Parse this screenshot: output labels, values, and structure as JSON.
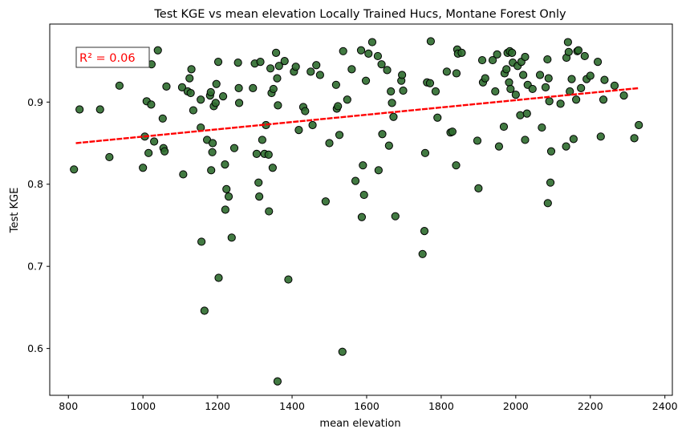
{
  "chart_data": {
    "type": "scatter",
    "title": "Test KGE vs mean elevation Locally Trained Hucs, Montane Forest Only",
    "xlabel": "mean elevation",
    "ylabel": "Test KGE",
    "xlim": [
      750,
      2420
    ],
    "ylim": [
      0.543,
      0.995
    ],
    "xticks": [
      800,
      1000,
      1200,
      1400,
      1600,
      1800,
      2000,
      2200,
      2400
    ],
    "yticks": [
      0.6,
      0.7,
      0.8,
      0.9
    ],
    "grid": false,
    "annotation": "R² = 0.06",
    "annotation_color": "#ff0000",
    "marker_color": "#2e6b2e",
    "marker_edge": "#000000",
    "trend_color": "#ff0000",
    "trend_line": {
      "x": [
        820,
        2330
      ],
      "y": [
        0.85,
        0.917
      ]
    },
    "points": [
      [
        815,
        0.818
      ],
      [
        830,
        0.891
      ],
      [
        885,
        0.891
      ],
      [
        910,
        0.833
      ],
      [
        937,
        0.92
      ],
      [
        1000,
        0.82
      ],
      [
        1005,
        0.858
      ],
      [
        1010,
        0.901
      ],
      [
        1015,
        0.838
      ],
      [
        1022,
        0.897
      ],
      [
        1023,
        0.946
      ],
      [
        1030,
        0.852
      ],
      [
        1040,
        0.963
      ],
      [
        1053,
        0.88
      ],
      [
        1055,
        0.844
      ],
      [
        1058,
        0.84
      ],
      [
        1063,
        0.919
      ],
      [
        1105,
        0.918
      ],
      [
        1108,
        0.812
      ],
      [
        1120,
        0.913
      ],
      [
        1125,
        0.929
      ],
      [
        1128,
        0.911
      ],
      [
        1130,
        0.94
      ],
      [
        1135,
        0.89
      ],
      [
        1155,
        0.903
      ],
      [
        1155,
        0.869
      ],
      [
        1157,
        0.73
      ],
      [
        1165,
        0.646
      ],
      [
        1172,
        0.854
      ],
      [
        1180,
        0.908
      ],
      [
        1182,
        0.912
      ],
      [
        1183,
        0.817
      ],
      [
        1186,
        0.839
      ],
      [
        1187,
        0.85
      ],
      [
        1190,
        0.895
      ],
      [
        1195,
        0.899
      ],
      [
        1197,
        0.922
      ],
      [
        1202,
        0.949
      ],
      [
        1203,
        0.686
      ],
      [
        1215,
        0.907
      ],
      [
        1220,
        0.824
      ],
      [
        1221,
        0.769
      ],
      [
        1224,
        0.794
      ],
      [
        1230,
        0.785
      ],
      [
        1238,
        0.735
      ],
      [
        1245,
        0.844
      ],
      [
        1255,
        0.948
      ],
      [
        1257,
        0.917
      ],
      [
        1258,
        0.899
      ],
      [
        1295,
        0.917
      ],
      [
        1300,
        0.947
      ],
      [
        1305,
        0.837
      ],
      [
        1310,
        0.802
      ],
      [
        1312,
        0.785
      ],
      [
        1315,
        0.949
      ],
      [
        1320,
        0.854
      ],
      [
        1326,
        0.837
      ],
      [
        1330,
        0.872
      ],
      [
        1337,
        0.836
      ],
      [
        1338,
        0.767
      ],
      [
        1342,
        0.941
      ],
      [
        1345,
        0.911
      ],
      [
        1348,
        0.82
      ],
      [
        1350,
        0.916
      ],
      [
        1357,
        0.96
      ],
      [
        1360,
        0.929
      ],
      [
        1361,
        0.56
      ],
      [
        1362,
        0.896
      ],
      [
        1365,
        0.944
      ],
      [
        1380,
        0.95
      ],
      [
        1390,
        0.684
      ],
      [
        1405,
        0.937
      ],
      [
        1410,
        0.943
      ],
      [
        1418,
        0.866
      ],
      [
        1430,
        0.894
      ],
      [
        1435,
        0.889
      ],
      [
        1450,
        0.937
      ],
      [
        1455,
        0.872
      ],
      [
        1465,
        0.945
      ],
      [
        1475,
        0.933
      ],
      [
        1490,
        0.779
      ],
      [
        1500,
        0.85
      ],
      [
        1518,
        0.921
      ],
      [
        1520,
        0.892
      ],
      [
        1523,
        0.895
      ],
      [
        1527,
        0.86
      ],
      [
        1535,
        0.596
      ],
      [
        1537,
        0.962
      ],
      [
        1548,
        0.903
      ],
      [
        1560,
        0.94
      ],
      [
        1570,
        0.804
      ],
      [
        1585,
        0.963
      ],
      [
        1587,
        0.76
      ],
      [
        1590,
        0.823
      ],
      [
        1593,
        0.787
      ],
      [
        1598,
        0.926
      ],
      [
        1605,
        0.959
      ],
      [
        1615,
        0.973
      ],
      [
        1630,
        0.956
      ],
      [
        1632,
        0.817
      ],
      [
        1640,
        0.946
      ],
      [
        1642,
        0.861
      ],
      [
        1655,
        0.939
      ],
      [
        1660,
        0.847
      ],
      [
        1665,
        0.913
      ],
      [
        1668,
        0.899
      ],
      [
        1672,
        0.882
      ],
      [
        1677,
        0.761
      ],
      [
        1693,
        0.926
      ],
      [
        1695,
        0.933
      ],
      [
        1698,
        0.914
      ],
      [
        1750,
        0.715
      ],
      [
        1755,
        0.743
      ],
      [
        1757,
        0.838
      ],
      [
        1762,
        0.924
      ],
      [
        1770,
        0.923
      ],
      [
        1772,
        0.974
      ],
      [
        1785,
        0.913
      ],
      [
        1790,
        0.881
      ],
      [
        1815,
        0.937
      ],
      [
        1825,
        0.863
      ],
      [
        1830,
        0.864
      ],
      [
        1840,
        0.823
      ],
      [
        1841,
        0.935
      ],
      [
        1843,
        0.964
      ],
      [
        1845,
        0.959
      ],
      [
        1855,
        0.96
      ],
      [
        1897,
        0.853
      ],
      [
        1900,
        0.795
      ],
      [
        1910,
        0.951
      ],
      [
        1912,
        0.924
      ],
      [
        1918,
        0.929
      ],
      [
        1938,
        0.951
      ],
      [
        1945,
        0.913
      ],
      [
        1950,
        0.958
      ],
      [
        1955,
        0.846
      ],
      [
        1968,
        0.87
      ],
      [
        1970,
        0.935
      ],
      [
        1975,
        0.94
      ],
      [
        1978,
        0.96
      ],
      [
        1982,
        0.924
      ],
      [
        1984,
        0.962
      ],
      [
        1986,
        0.916
      ],
      [
        1990,
        0.96
      ],
      [
        1992,
        0.948
      ],
      [
        2000,
        0.909
      ],
      [
        2005,
        0.944
      ],
      [
        2012,
        0.884
      ],
      [
        2015,
        0.949
      ],
      [
        2020,
        0.933
      ],
      [
        2025,
        0.854
      ],
      [
        2025,
        0.955
      ],
      [
        2030,
        0.886
      ],
      [
        2032,
        0.921
      ],
      [
        2045,
        0.916
      ],
      [
        2065,
        0.933
      ],
      [
        2070,
        0.869
      ],
      [
        2080,
        0.918
      ],
      [
        2085,
        0.952
      ],
      [
        2086,
        0.777
      ],
      [
        2088,
        0.929
      ],
      [
        2090,
        0.901
      ],
      [
        2093,
        0.802
      ],
      [
        2095,
        0.84
      ],
      [
        2120,
        0.898
      ],
      [
        2135,
        0.846
      ],
      [
        2136,
        0.954
      ],
      [
        2140,
        0.973
      ],
      [
        2142,
        0.961
      ],
      [
        2145,
        0.913
      ],
      [
        2150,
        0.928
      ],
      [
        2155,
        0.855
      ],
      [
        2162,
        0.903
      ],
      [
        2165,
        0.962
      ],
      [
        2168,
        0.963
      ],
      [
        2175,
        0.917
      ],
      [
        2185,
        0.956
      ],
      [
        2190,
        0.928
      ],
      [
        2200,
        0.932
      ],
      [
        2220,
        0.949
      ],
      [
        2228,
        0.858
      ],
      [
        2235,
        0.903
      ],
      [
        2238,
        0.927
      ],
      [
        2265,
        0.92
      ],
      [
        2290,
        0.908
      ],
      [
        2318,
        0.856
      ],
      [
        2330,
        0.872
      ]
    ]
  }
}
